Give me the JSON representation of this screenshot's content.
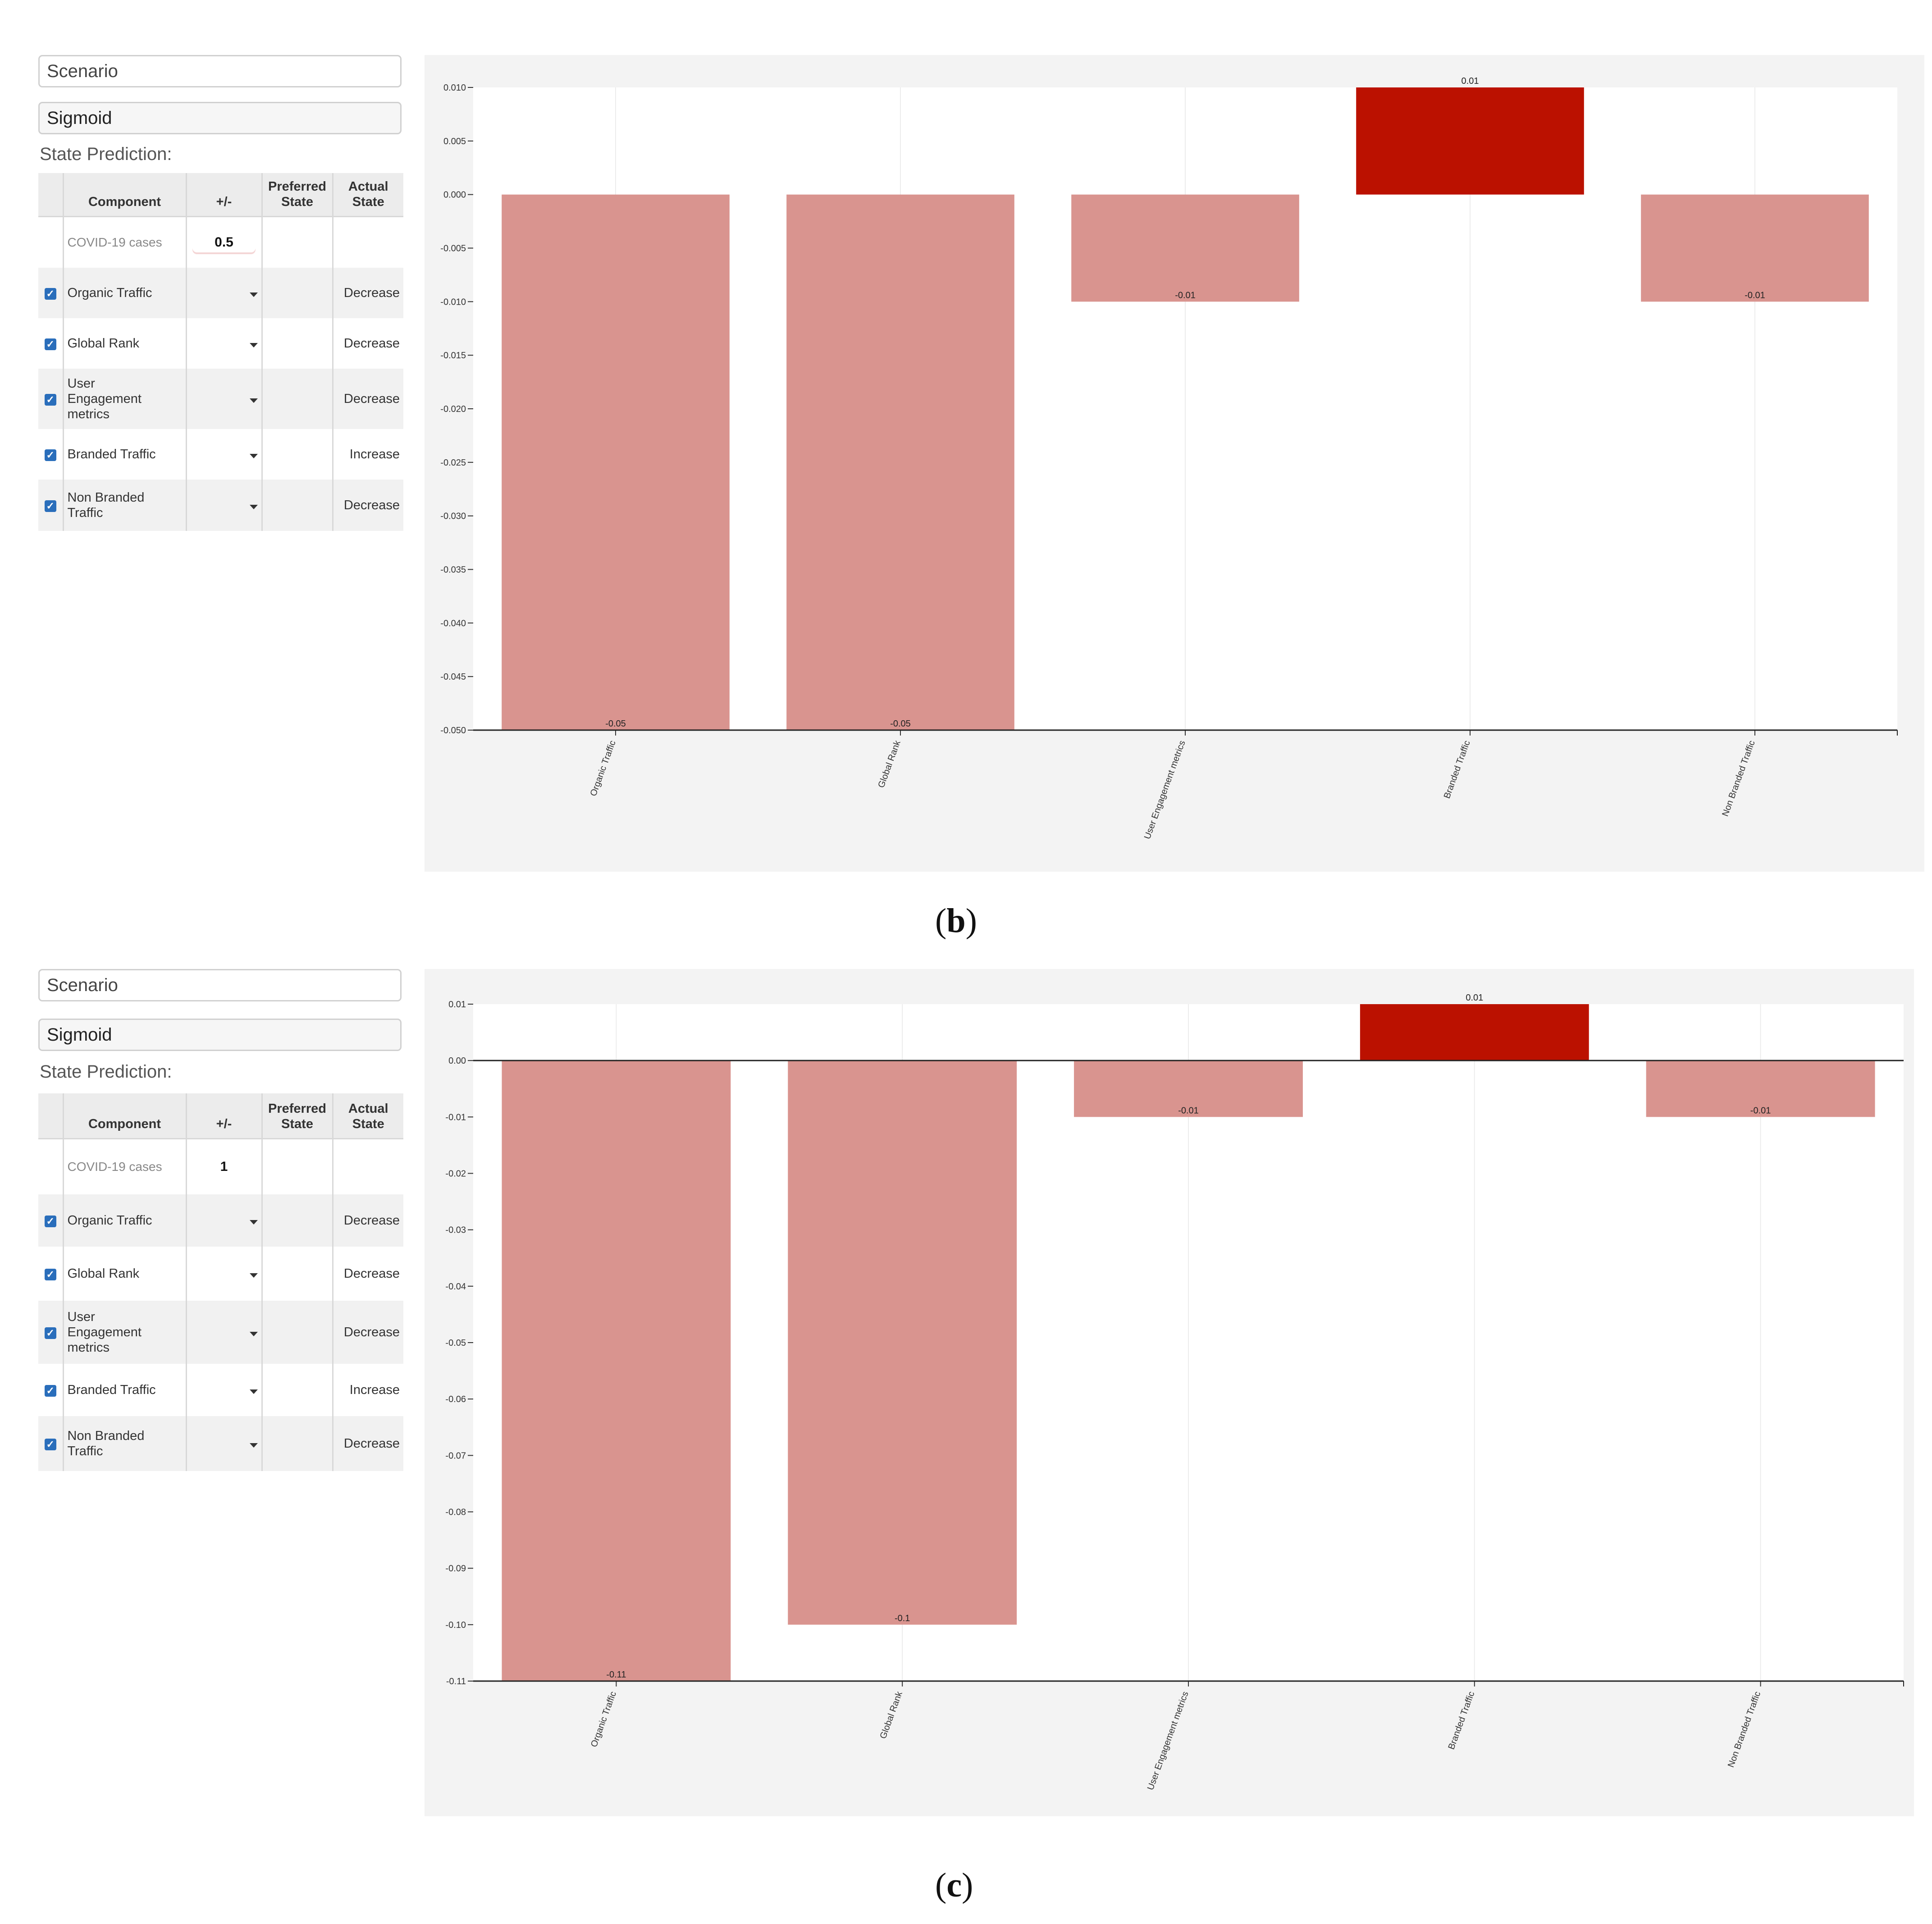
{
  "panels": [
    {
      "scenario_placeholder": "Scenario",
      "function_value": "Sigmoid",
      "state_prediction_label": "State Prediction:",
      "columns": [
        "Component",
        "+/-",
        "Preferred State",
        "Actual State"
      ],
      "covid": {
        "label": "COVID-19 cases",
        "value": "0.5"
      },
      "rows": [
        {
          "name": "Organic Traffic",
          "checked": true,
          "actual": "Decrease"
        },
        {
          "name": "Global Rank",
          "checked": true,
          "actual": "Decrease"
        },
        {
          "name": "User Engagement metrics",
          "checked": true,
          "actual": "Decrease"
        },
        {
          "name": "Branded Traffic",
          "checked": true,
          "actual": "Increase"
        },
        {
          "name": "Non Branded Traffic",
          "checked": true,
          "actual": "Decrease"
        }
      ],
      "caption_letter": "b"
    },
    {
      "scenario_placeholder": "Scenario",
      "function_value": "Sigmoid",
      "state_prediction_label": "State Prediction:",
      "columns": [
        "Component",
        "+/-",
        "Preferred State",
        "Actual State"
      ],
      "covid": {
        "label": "COVID-19 cases",
        "value": "1"
      },
      "rows": [
        {
          "name": "Organic Traffic",
          "checked": true,
          "actual": "Decrease"
        },
        {
          "name": "Global Rank",
          "checked": true,
          "actual": "Decrease"
        },
        {
          "name": "User Engagement metrics",
          "checked": true,
          "actual": "Decrease"
        },
        {
          "name": "Branded Traffic",
          "checked": true,
          "actual": "Increase"
        },
        {
          "name": "Non Branded Traffic",
          "checked": true,
          "actual": "Decrease"
        }
      ],
      "caption_letter": "c"
    }
  ],
  "colors": {
    "negative_bar": "#d9948f",
    "positive_bar": "#bb1100",
    "panel_bg": "#f3f3f3"
  },
  "chart_data": [
    {
      "type": "bar",
      "categories": [
        "Organic Traffic",
        "Global Rank",
        "User Engagement metrics",
        "Branded Traffic",
        "Non Branded Traffic"
      ],
      "values": [
        -0.05,
        -0.05,
        -0.01,
        0.01,
        -0.01
      ],
      "labels": [
        "-0.05",
        "-0.05",
        "-0.01",
        "0.01",
        "-0.01"
      ],
      "ylim": [
        -0.05,
        0.01
      ],
      "yticks": [
        0.01,
        0.005,
        0.0,
        -0.005,
        -0.01,
        -0.015,
        -0.02,
        -0.025,
        -0.03,
        -0.035,
        -0.04,
        -0.045,
        -0.05
      ],
      "ytick_labels": [
        "0.010",
        "0.005",
        "0.000",
        "-0.005",
        "-0.010",
        "-0.015",
        "-0.020",
        "-0.025",
        "-0.030",
        "-0.035",
        "-0.040",
        "-0.045",
        "-0.050"
      ],
      "zero_line": false,
      "grid": true
    },
    {
      "type": "bar",
      "categories": [
        "Organic Traffic",
        "Global Rank",
        "User Engagement metrics",
        "Branded Traffic",
        "Non Branded Traffic"
      ],
      "values": [
        -0.11,
        -0.1,
        -0.01,
        0.01,
        -0.01
      ],
      "labels": [
        "-0.11",
        "-0.1",
        "-0.01",
        "0.01",
        "-0.01"
      ],
      "ylim": [
        -0.11,
        0.01
      ],
      "yticks": [
        0.01,
        0.0,
        -0.01,
        -0.02,
        -0.03,
        -0.04,
        -0.05,
        -0.06,
        -0.07,
        -0.08,
        -0.09,
        -0.1,
        -0.11
      ],
      "ytick_labels": [
        "0.01",
        "0.00",
        "-0.01",
        "-0.02",
        "-0.03",
        "-0.04",
        "-0.05",
        "-0.06",
        "-0.07",
        "-0.08",
        "-0.09",
        "-0.10",
        "-0.11"
      ],
      "zero_line": true,
      "grid": true
    }
  ]
}
